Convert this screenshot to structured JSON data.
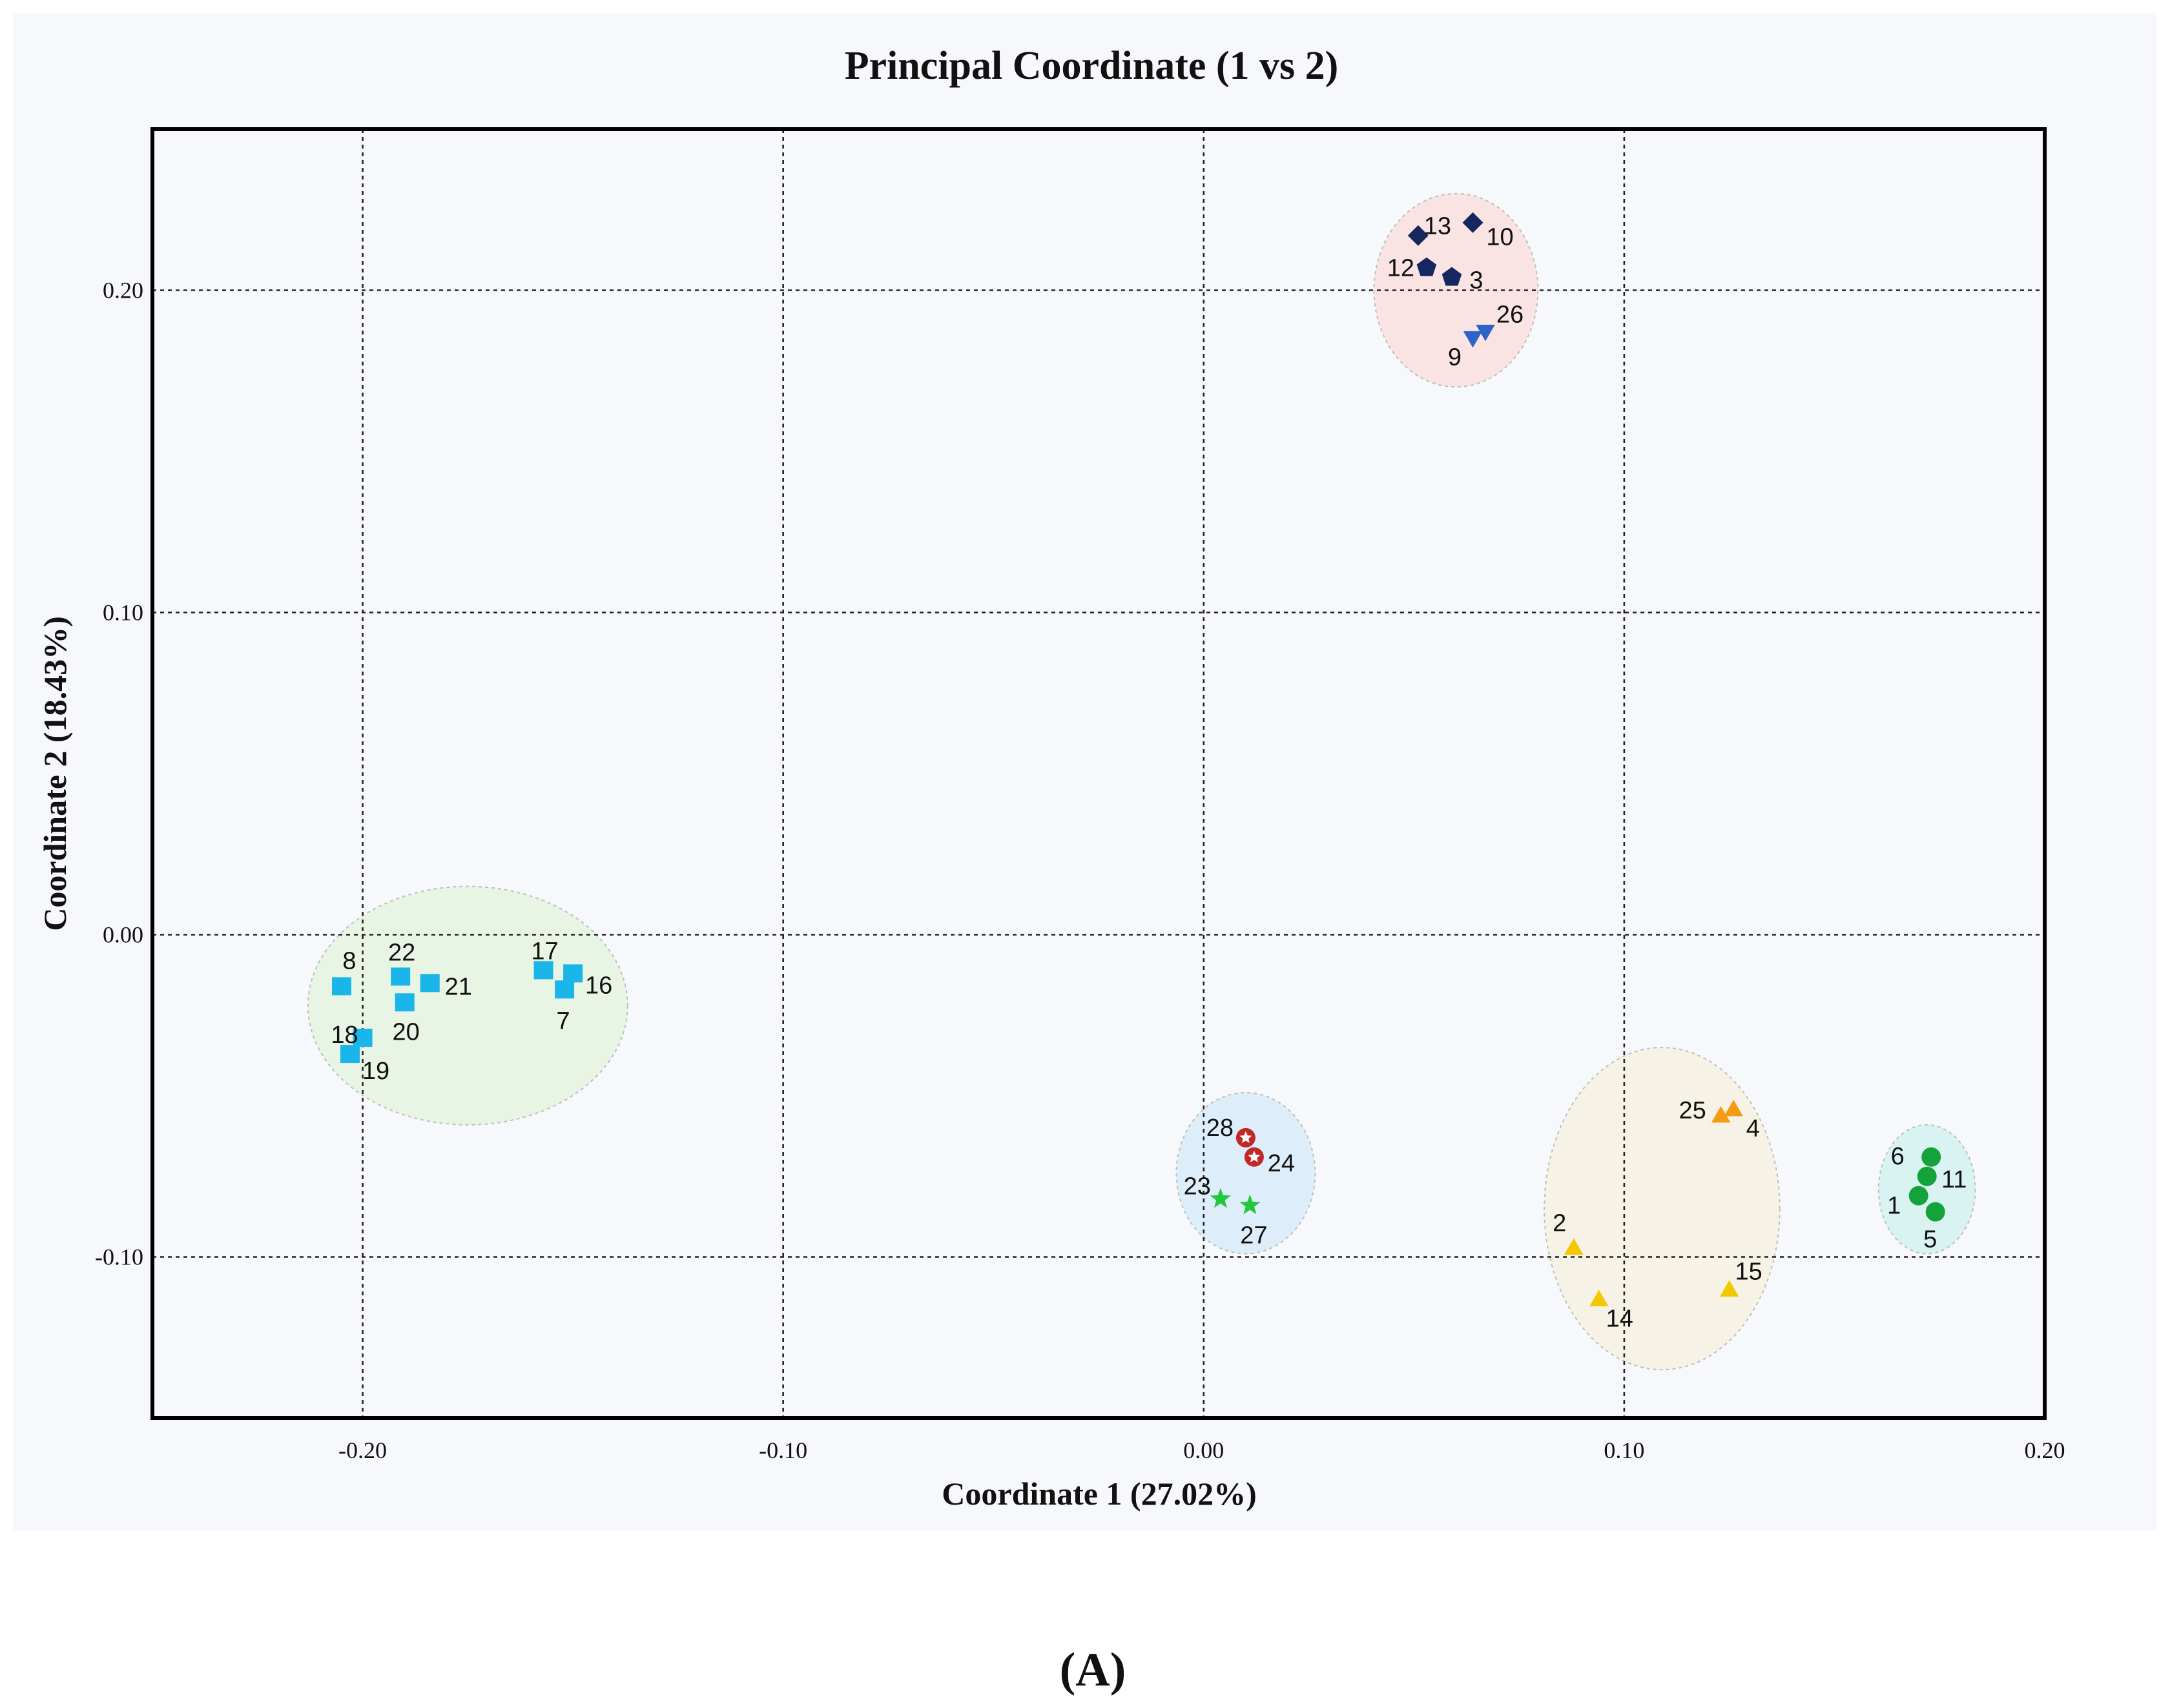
{
  "chart_data": {
    "type": "scatter",
    "title": "Principal Coordinate (1 vs 2)",
    "xlabel": "Coordinate 1 (27.02%)",
    "ylabel": "Coordinate 2 (18.43%)",
    "xlim": [
      -0.25,
      0.2
    ],
    "ylim": [
      -0.15,
      0.25
    ],
    "grid": true,
    "x_ticks": [
      "-0.20",
      "-0.10",
      "0.00",
      "0.10",
      "0.20"
    ],
    "y_ticks": [
      "0.20",
      "0.10",
      "0.00",
      "-0.10"
    ],
    "series": [
      {
        "marker": "square",
        "color": "#1ab6ea",
        "points": [
          {
            "label": "8",
            "x": -0.205,
            "y": -0.016
          },
          {
            "label": "22",
            "x": -0.191,
            "y": -0.013
          },
          {
            "label": "21",
            "x": -0.184,
            "y": -0.015
          },
          {
            "label": "20",
            "x": -0.19,
            "y": -0.021
          },
          {
            "label": "18",
            "x": -0.2,
            "y": -0.032
          },
          {
            "label": "19",
            "x": -0.203,
            "y": -0.037
          },
          {
            "label": "17",
            "x": -0.157,
            "y": -0.011
          },
          {
            "label": "16",
            "x": -0.15,
            "y": -0.012
          },
          {
            "label": "7",
            "x": -0.152,
            "y": -0.017
          }
        ]
      },
      {
        "marker": "diamond",
        "color": "#15275e",
        "points": [
          {
            "label": "13",
            "x": 0.051,
            "y": 0.217
          },
          {
            "label": "10",
            "x": 0.064,
            "y": 0.221
          }
        ]
      },
      {
        "marker": "pentagon",
        "color": "#15275e",
        "points": [
          {
            "label": "12",
            "x": 0.053,
            "y": 0.207
          },
          {
            "label": "3",
            "x": 0.059,
            "y": 0.204
          }
        ]
      },
      {
        "marker": "triangle-down",
        "color": "#2c63c6",
        "points": [
          {
            "label": "9",
            "x": 0.064,
            "y": 0.185
          },
          {
            "label": "26",
            "x": 0.067,
            "y": 0.187
          }
        ]
      },
      {
        "marker": "star-hollow",
        "color": "#c12828",
        "points": [
          {
            "label": "28",
            "x": 0.01,
            "y": -0.063
          },
          {
            "label": "24",
            "x": 0.012,
            "y": -0.069
          }
        ]
      },
      {
        "marker": "star",
        "color": "#22c93c",
        "points": [
          {
            "label": "23",
            "x": 0.004,
            "y": -0.082
          },
          {
            "label": "27",
            "x": 0.011,
            "y": -0.084
          }
        ]
      },
      {
        "marker": "triangle",
        "color": "#f39c12",
        "points": [
          {
            "label": "25",
            "x": 0.123,
            "y": -0.056
          },
          {
            "label": "4",
            "x": 0.126,
            "y": -0.054
          }
        ]
      },
      {
        "marker": "triangle",
        "color": "#f4c800",
        "points": [
          {
            "label": "2",
            "x": 0.088,
            "y": -0.097
          },
          {
            "label": "14",
            "x": 0.094,
            "y": -0.113
          },
          {
            "label": "15",
            "x": 0.125,
            "y": -0.11
          }
        ]
      },
      {
        "marker": "circle",
        "color": "#14a23a",
        "points": [
          {
            "label": "6",
            "x": 0.173,
            "y": -0.069
          },
          {
            "label": "11",
            "x": 0.172,
            "y": -0.075
          },
          {
            "label": "1",
            "x": 0.17,
            "y": -0.081
          },
          {
            "label": "5",
            "x": 0.174,
            "y": -0.086
          }
        ]
      }
    ],
    "ellipses": [
      {
        "cx": -0.175,
        "cy": -0.022,
        "rx": 0.038,
        "ry": 0.037,
        "fill": "#e8f5e4"
      },
      {
        "cx": 0.06,
        "cy": 0.2,
        "rx": 0.0195,
        "ry": 0.03,
        "fill": "#fae3e3"
      },
      {
        "cx": 0.01,
        "cy": -0.074,
        "rx": 0.0165,
        "ry": 0.025,
        "fill": "#ddeefa"
      },
      {
        "cx": 0.109,
        "cy": -0.085,
        "rx": 0.028,
        "ry": 0.05,
        "fill": "#f6f2e6"
      },
      {
        "cx": 0.172,
        "cy": -0.079,
        "rx": 0.0115,
        "ry": 0.02,
        "fill": "#d8f3f2"
      }
    ]
  },
  "caption": "(A)",
  "colors": {
    "panel_bg": "#f7f8fc",
    "frame": "#000000"
  }
}
